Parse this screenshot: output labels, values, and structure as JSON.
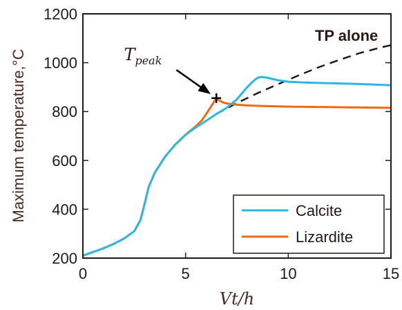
{
  "chart_data": {
    "type": "line",
    "xlabel": "Vt/h",
    "ylabel": "Maximum temperature,°C",
    "xlim": [
      0,
      15
    ],
    "ylim": [
      200,
      1200
    ],
    "xticks": [
      0,
      5,
      10,
      15
    ],
    "yticks": [
      200,
      400,
      600,
      800,
      1000,
      1200
    ],
    "grid": false,
    "legend_position": "bottom-right",
    "series": [
      {
        "name": "Calcite",
        "color": "#2cb6e2",
        "style": "solid",
        "x": [
          0,
          0.5,
          1.0,
          1.5,
          2.0,
          2.5,
          2.8,
          3.0,
          3.2,
          3.5,
          4.0,
          4.5,
          5.0,
          5.5,
          6.0,
          6.5,
          7.0,
          7.5,
          8.0,
          8.3,
          8.5,
          8.7,
          9.0,
          9.5,
          10.0,
          11.0,
          12.0,
          13.0,
          14.0,
          15.0
        ],
        "y": [
          210,
          225,
          240,
          258,
          280,
          310,
          355,
          420,
          490,
          550,
          615,
          665,
          705,
          735,
          762,
          790,
          815,
          850,
          900,
          925,
          938,
          942,
          938,
          928,
          922,
          918,
          916,
          914,
          911,
          908
        ]
      },
      {
        "name": "Lizardite",
        "color": "#ef6a12",
        "style": "solid",
        "x": [
          0,
          0.5,
          1.0,
          1.5,
          2.0,
          2.5,
          2.8,
          3.0,
          3.2,
          3.5,
          4.0,
          4.5,
          5.0,
          5.5,
          5.8,
          6.0,
          6.2,
          6.4,
          6.5,
          6.6,
          6.8,
          7.0,
          7.5,
          8.0,
          9.0,
          10.0,
          12.0,
          15.0
        ],
        "y": [
          210,
          225,
          240,
          258,
          280,
          310,
          355,
          420,
          490,
          550,
          615,
          665,
          705,
          740,
          765,
          790,
          815,
          842,
          855,
          848,
          838,
          833,
          828,
          825,
          822,
          820,
          818,
          815
        ]
      },
      {
        "name": "TP alone",
        "color": "#231815",
        "style": "dashed",
        "x": [
          6.5,
          7.5,
          8.5,
          9.5,
          10.5,
          11.5,
          12.5,
          13.5,
          14.5,
          15.0
        ],
        "y": [
          790,
          835,
          875,
          912,
          948,
          982,
          1012,
          1040,
          1062,
          1072
        ]
      }
    ],
    "annotations": [
      {
        "text": "TP alone",
        "x": 11.3,
        "y": 1090
      },
      {
        "text_main": "T",
        "text_sub": "peak",
        "x": 2.0,
        "y": 1010,
        "arrow_to": [
          6.5,
          855
        ]
      }
    ],
    "marker": {
      "x": 6.5,
      "y": 855,
      "shape": "plus"
    }
  }
}
